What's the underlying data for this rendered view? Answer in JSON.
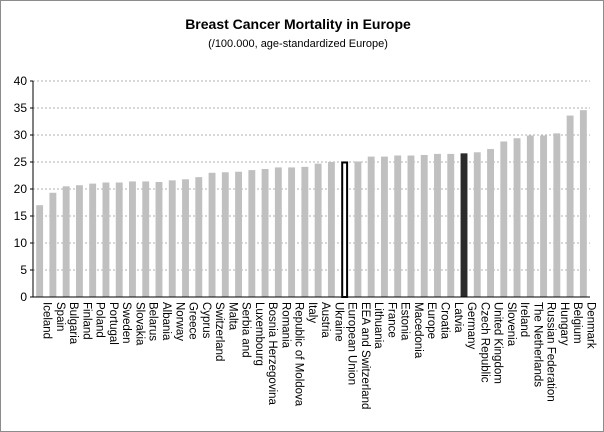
{
  "chart_data": {
    "type": "bar",
    "title": "Breast Cancer Mortality in Europe",
    "subtitle": "(/100.000, age-standardized Europe)",
    "ylim": [
      0,
      40
    ],
    "yticks": [
      "0",
      "5",
      "10",
      "15",
      "20",
      "25",
      "30",
      "35",
      "40"
    ],
    "grid": true,
    "categories": [
      "Iceland",
      "Spain",
      "Bulgaria",
      "Finland",
      "Poland",
      "Portugal",
      "Sweden",
      "Slovakia",
      "Belarus",
      "Albania",
      "Norway",
      "Greece",
      "Cyprus",
      "Switzerland",
      "Malta",
      "Serbia and",
      "Luxembourg",
      "Bosnia Herzegovina",
      "Romania",
      "Republic of Moldova",
      "Italy",
      "Austria",
      "Ukraine",
      "European Union",
      "EEA and Switzerland",
      "Lithuania",
      "France",
      "Estonia",
      "Macedonia",
      "Europe",
      "Croatia",
      "Latvia",
      "Germany",
      "Czech Republic",
      "United Kingdom",
      "Slovenia",
      "Ireland",
      "The Netherlands",
      "Russian Federation",
      "Hungary",
      "Belgium",
      "Denmark"
    ],
    "values": [
      17.0,
      19.3,
      20.5,
      20.7,
      21.0,
      21.2,
      21.2,
      21.4,
      21.4,
      21.3,
      21.6,
      21.8,
      22.2,
      23.0,
      23.1,
      23.2,
      23.5,
      23.7,
      24.0,
      24.0,
      24.1,
      24.7,
      25.0,
      25.1,
      25.1,
      26.0,
      26.0,
      26.2,
      26.2,
      26.3,
      26.5,
      26.5,
      26.6,
      26.8,
      27.4,
      28.8,
      29.4,
      29.9,
      29.9,
      30.3,
      33.6,
      34.6
    ],
    "colors": {
      "default": "#c0c0c0",
      "highlight_outline": "#000000",
      "highlight_dark": "#2b2b2b"
    },
    "highlight_outline_category": "European Union",
    "highlight_dark_category": "Germany"
  }
}
